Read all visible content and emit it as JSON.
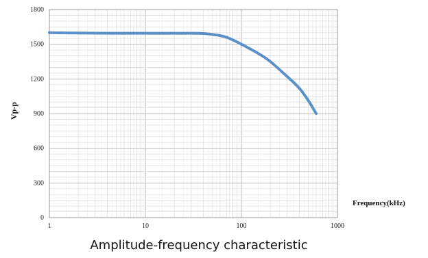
{
  "chart_data": {
    "type": "line",
    "title": "Amplitude-frequency characteristic",
    "xlabel": "Frequency(kHz)",
    "ylabel": "Vp-p",
    "x_scale": "log",
    "xlim": [
      1,
      1000
    ],
    "ylim": [
      0,
      1800
    ],
    "x_ticks": [
      1,
      10,
      100,
      1000
    ],
    "x_tick_labels": [
      "1",
      "10",
      "100",
      "1000"
    ],
    "y_ticks": [
      0,
      300,
      600,
      900,
      1200,
      1500,
      1800
    ],
    "y_tick_labels": [
      "0",
      "300",
      "600",
      "900",
      "1200",
      "1500",
      "1800"
    ],
    "grid": true,
    "legend": "none",
    "colors": {
      "line": "#5b8fc9",
      "grid_major": "#b8b8b8",
      "grid_minor": "#dddddd",
      "axis": "#9a9a9a"
    },
    "series": [
      {
        "x": [
          1,
          2,
          5,
          10,
          20,
          30,
          40,
          50,
          60,
          70,
          80,
          90,
          100,
          150,
          200,
          300,
          400,
          500,
          600
        ],
        "y": [
          1600,
          1597,
          1595,
          1595,
          1595,
          1595,
          1593,
          1585,
          1575,
          1560,
          1540,
          1520,
          1500,
          1420,
          1350,
          1220,
          1120,
          1010,
          900
        ]
      }
    ]
  }
}
